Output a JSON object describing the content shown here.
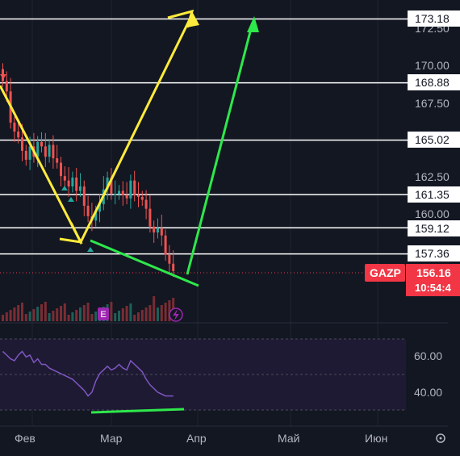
{
  "symbol": "GAZP",
  "current_price": "156.16",
  "countdown": "10:54:4",
  "price_axis_ticks": [
    "172.50",
    "170.00",
    "167.50",
    "162.50",
    "160.00"
  ],
  "level_labels": [
    "173.18",
    "168.88",
    "165.02",
    "161.35",
    "159.12",
    "157.36"
  ],
  "rsi_axis_ticks": [
    "60.00",
    "40.00"
  ],
  "time_axis": [
    "Фев",
    "Мар",
    "Апр",
    "Май",
    "Июн"
  ],
  "earnings_marker": "E",
  "colors": {
    "background": "#131722",
    "up": "#26a69a",
    "down": "#ef5350",
    "level_line": "#ffffff",
    "yellow_arrow": "#ffeb3b",
    "green_arrow": "#2ee84b",
    "rsi_line": "#7e57c2",
    "price_tag": "#f23645"
  },
  "icons": [
    "settings-icon",
    "lightning-icon"
  ],
  "chart_data": {
    "type": "candlestick",
    "price_levels": [
      173.18,
      168.88,
      165.02,
      161.35,
      159.12,
      157.36
    ],
    "last_price": 156.16,
    "y_ticks": [
      172.5,
      170.0,
      167.5,
      162.5,
      160.0
    ],
    "rsi_ticks": [
      60.0,
      40.0
    ],
    "x_ticks": [
      "Фев",
      "Мар",
      "Апр",
      "Май",
      "Июн"
    ],
    "closes": [
      169.0,
      168.3,
      166.2,
      165.6,
      165.2,
      164.3,
      163.7,
      164.6,
      163.9,
      164.9,
      164.6,
      163.9,
      164.7,
      163.8,
      163.5,
      162.6,
      162.3,
      161.9,
      162.5,
      161.6,
      161.9,
      160.6,
      159.9,
      159.6,
      160.2,
      160.7,
      161.7,
      162.5,
      161.4,
      161.4,
      161.6,
      161.3,
      161.1,
      162.3,
      161.3,
      161.2,
      161.0,
      160.4,
      159.2,
      158.8,
      159.1,
      158.6,
      157.3,
      156.7,
      156.2
    ],
    "rsi": [
      62,
      60,
      58,
      57,
      60,
      62,
      59,
      60,
      56,
      58,
      55,
      55,
      53,
      52,
      51,
      50,
      49,
      48,
      47,
      45,
      43,
      41,
      38,
      40,
      46,
      50,
      52,
      54,
      52,
      53,
      55,
      53,
      52,
      57,
      55,
      53,
      51,
      47,
      44,
      42,
      40,
      39,
      38,
      38,
      38
    ]
  }
}
